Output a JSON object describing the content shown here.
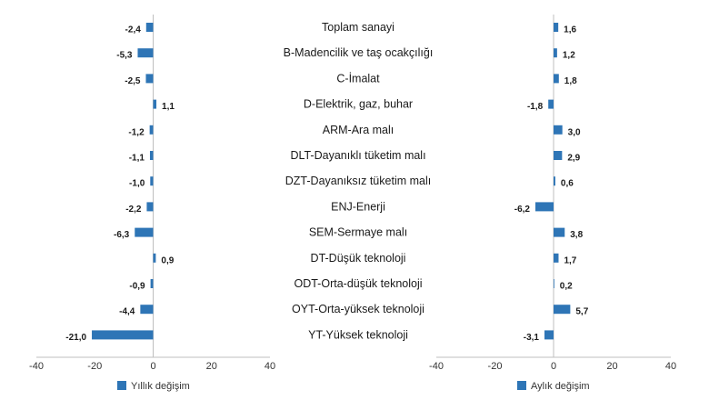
{
  "chart_data": {
    "type": "bar",
    "orientation": "horizontal",
    "categories": [
      "Toplam sanayi",
      "B-Madencilik ve taş ocakçılığı",
      "C-İmalat",
      "D-Elektrik, gaz, buhar",
      "ARM-Ara malı",
      "DLT-Dayanıklı tüketim malı",
      "DZT-Dayanıksız tüketim malı",
      "ENJ-Enerji",
      "SEM-Sermaye malı",
      "DT-Düşük teknoloji",
      "ODT-Orta-düşük teknoloji",
      "OYT-Orta-yüksek teknoloji",
      "YT-Yüksek teknoloji"
    ],
    "series": [
      {
        "name": "Yıllık değişim",
        "values": [
          -2.4,
          -5.3,
          -2.5,
          1.1,
          -1.2,
          -1.1,
          -1.0,
          -2.2,
          -6.3,
          0.9,
          -0.9,
          -4.4,
          -21.0
        ],
        "labels": [
          "-2,4",
          "-5,3",
          "-2,5",
          "1,1",
          "-1,2",
          "-1,1",
          "-1,0",
          "-2,2",
          "-6,3",
          "0,9",
          "-0,9",
          "-4,4",
          "-21,0"
        ],
        "xlim": [
          -40,
          40
        ],
        "ticks": [
          "-40",
          "-20",
          "0",
          "20",
          "40"
        ]
      },
      {
        "name": "Aylık değişim",
        "values": [
          1.6,
          1.2,
          1.8,
          -1.8,
          3.0,
          2.9,
          0.6,
          -6.2,
          3.8,
          1.7,
          0.2,
          5.7,
          -3.1
        ],
        "labels": [
          "1,6",
          "1,2",
          "1,8",
          "-1,8",
          "3,0",
          "2,9",
          "0,6",
          "-6,2",
          "3,8",
          "1,7",
          "0,2",
          "5,7",
          "-3,1"
        ],
        "xlim": [
          -40,
          40
        ],
        "ticks": [
          "-40",
          "-20",
          "0",
          "20",
          "40"
        ]
      }
    ],
    "color": "#2e75b6",
    "grid": false,
    "legend": "bottom"
  }
}
